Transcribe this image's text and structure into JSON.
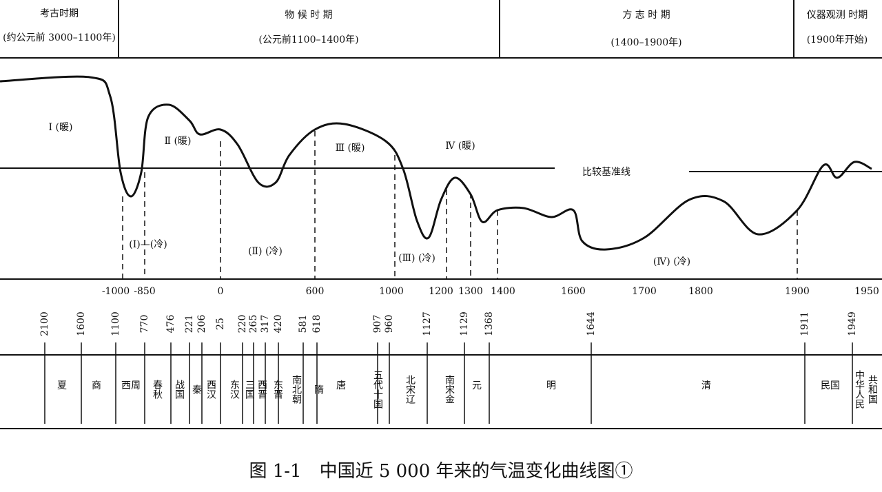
{
  "header": {
    "periods": [
      {
        "title": "考古时期",
        "subtitle": "(约公元前 3000–1100年)"
      },
      {
        "title": "物 候 时 期",
        "subtitle": "(公元前1100–1400年)"
      },
      {
        "title": "方 志 时 期",
        "subtitle": "(1400–1900年)"
      },
      {
        "title": "仪器观测 时期",
        "subtitle": "(1900年开始)"
      }
    ]
  },
  "curve": {
    "warm_labels": [
      "Ⅰ (暖)",
      "Ⅱ (暖)",
      "Ⅲ (暖)",
      "Ⅳ (暖)"
    ],
    "cold_labels": [
      "(Ⅰ)—(冷)",
      "(Ⅱ) (冷)",
      "(Ⅲ) (冷)",
      "(Ⅳ) (冷)"
    ],
    "baseline_label": "比较基准线",
    "axis_labels": [
      "-1000",
      "-850",
      "0",
      "600",
      "1000",
      "1200",
      "1300",
      "1400",
      "1600",
      "1700",
      "1800",
      "1900",
      "1950"
    ]
  },
  "dynasties": {
    "years": [
      "2100",
      "1600",
      "1100",
      "770",
      "476",
      "221",
      "206",
      "25",
      "220",
      "265",
      "317",
      "420",
      "581",
      "618",
      "907",
      "960",
      "1127",
      "1129",
      "1368",
      "1644",
      "1911",
      "1949"
    ],
    "names": [
      "夏",
      "商",
      "西周",
      "春秋",
      "战国",
      "秦",
      "西汉",
      "东汉",
      "三国",
      "西晋",
      "东晋",
      "南北朝",
      "隋",
      "唐",
      "五代十国",
      "北宋辽",
      "南宋金",
      "元",
      "明",
      "清",
      "民国",
      "中华人民",
      "共和国"
    ]
  },
  "caption": "图 1-1　中国近 5 000 年来的气温变化曲线图①"
}
